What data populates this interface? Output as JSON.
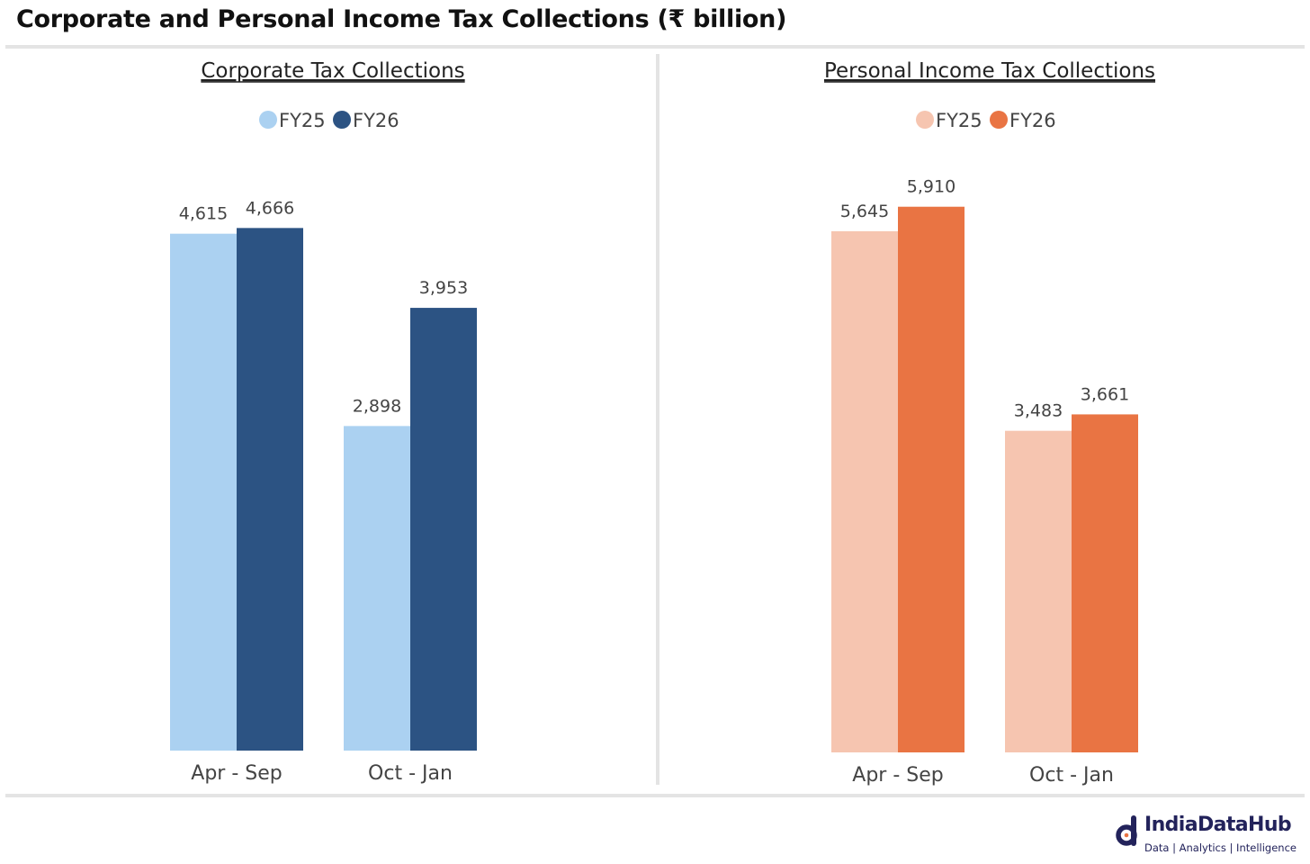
{
  "title": "Corporate and Personal Income Tax Collections (₹ billion)",
  "chart_data": [
    {
      "type": "bar",
      "title": "Corporate Tax Collections",
      "categories": [
        "Apr - Sep",
        "Oct - Jan"
      ],
      "series": [
        {
          "name": "FY25",
          "values": [
            4615,
            2898
          ],
          "labels": [
            "4,615",
            "2,898"
          ],
          "color": "#abd1f1"
        },
        {
          "name": "FY26",
          "values": [
            4666,
            3953
          ],
          "labels": [
            "4,666",
            "3,953"
          ],
          "color": "#2c5383"
        }
      ],
      "ylim": [
        0,
        5400
      ],
      "xlabel": "",
      "ylabel": "",
      "grid": false,
      "legend": "top-center"
    },
    {
      "type": "bar",
      "title": "Personal Income Tax Collections",
      "categories": [
        "Apr - Sep",
        "Oct - Jan"
      ],
      "series": [
        {
          "name": "FY25",
          "values": [
            5645,
            3483
          ],
          "labels": [
            "5,645",
            "3,483"
          ],
          "color": "#f6c5b0"
        },
        {
          "name": "FY26",
          "values": [
            5910,
            3661
          ],
          "labels": [
            "5,910",
            "3,661"
          ],
          "color": "#e97443"
        }
      ],
      "ylim": [
        0,
        6570
      ],
      "xlabel": "",
      "ylabel": "",
      "grid": false,
      "legend": "top-center"
    }
  ],
  "footer": {
    "brand": "IndiaDataHub",
    "tagline": "Data | Analytics | Intelligence",
    "brand_color": "#23235b"
  }
}
